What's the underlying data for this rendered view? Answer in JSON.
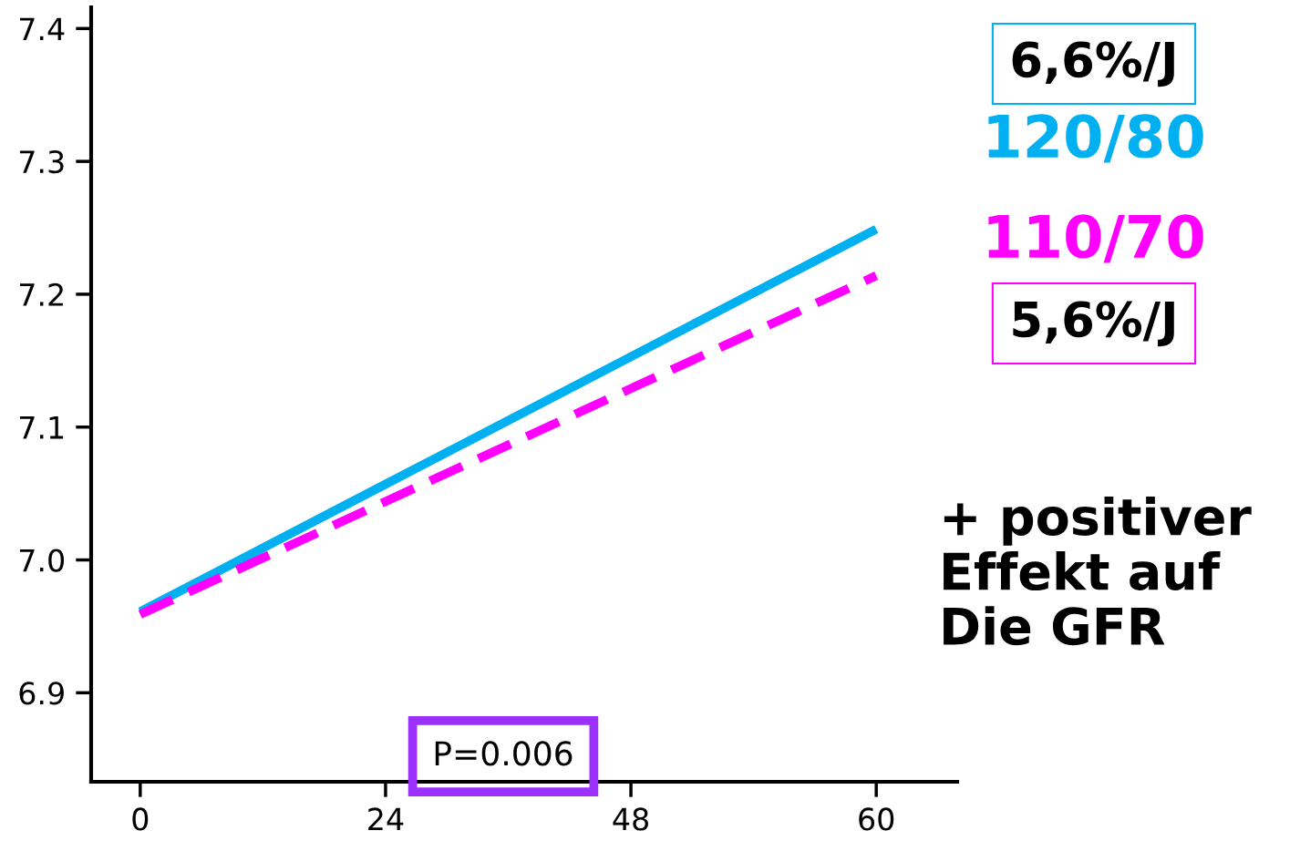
{
  "chart_data": {
    "type": "line",
    "categories": [
      "0",
      "24",
      "48",
      "60"
    ],
    "series": [
      {
        "name": "120/80",
        "color": "#00b0f0",
        "values": [
          6.961,
          7.057,
          7.153,
          7.249
        ],
        "line_style": "solid"
      },
      {
        "name": "110/70",
        "color": "#ff00ff",
        "values": [
          6.959,
          7.044,
          7.129,
          7.214
        ],
        "line_style": "dashed"
      }
    ],
    "ylim": [
      6.833,
      7.416
    ],
    "yticks": [
      6.9,
      {
        "value": 7.0,
        "label": "7.0"
      },
      7.1,
      7.2,
      7.3,
      7.4
    ],
    "grid": false,
    "legend": "right",
    "annotations": [
      "6,6%/J",
      "5,6%/J",
      "+ positiver\nEffekt auf\nDie GFR",
      "P=0.006"
    ]
  }
}
